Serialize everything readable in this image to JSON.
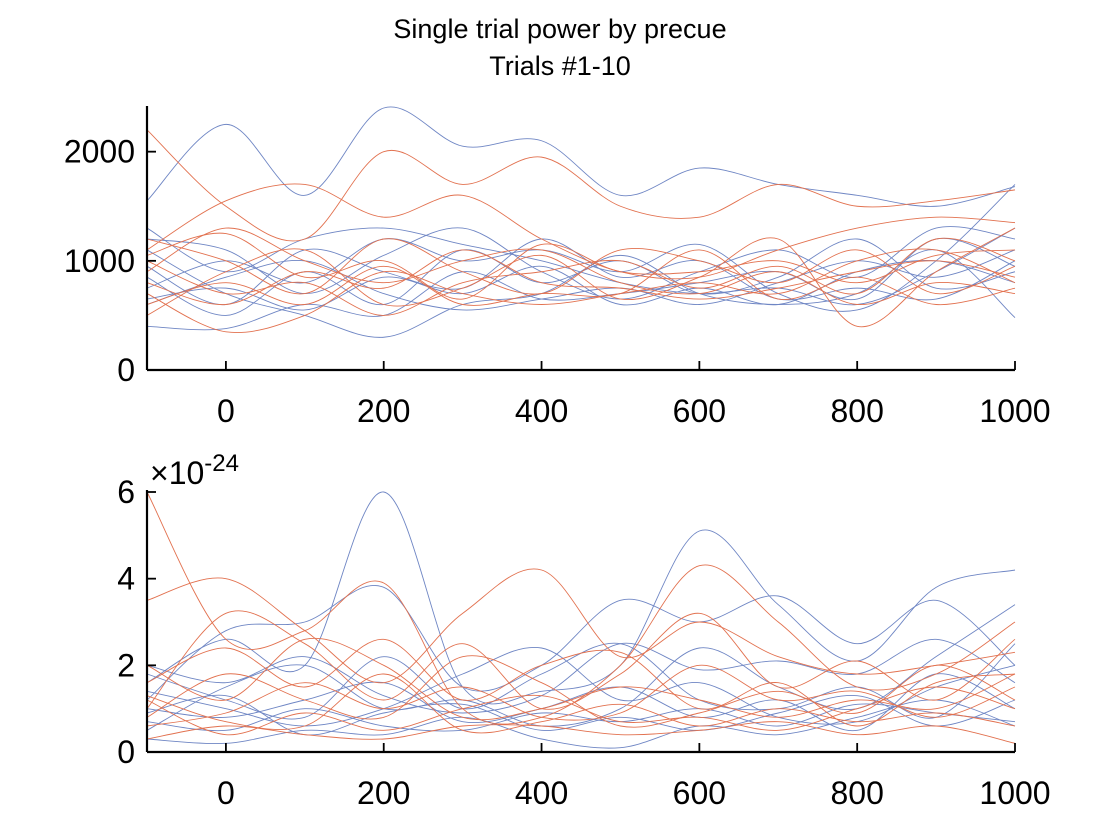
{
  "figure": {
    "title_line1": "Single trial power by precue",
    "title_line2": "Trials #1-10"
  },
  "colors": {
    "blue": "#6f86c4",
    "red": "#e2714f",
    "axis": "#000000"
  },
  "chart_data": [
    {
      "type": "line",
      "xlim": [
        -100,
        1000
      ],
      "ylim": [
        0,
        2400
      ],
      "xticks": [
        0,
        200,
        400,
        600,
        800,
        1000
      ],
      "yticks": [
        0,
        1000,
        2000
      ],
      "xtick_labels": [
        "0",
        "200",
        "400",
        "600",
        "800",
        "1000"
      ],
      "ytick_labels": [
        "0",
        "1000",
        "2000"
      ],
      "x": [
        -100,
        0,
        100,
        200,
        300,
        400,
        500,
        600,
        700,
        800,
        900,
        1000
      ],
      "series": [
        {
          "color": "blue",
          "values": [
            1550,
            2250,
            1600,
            2400,
            2050,
            2100,
            1600,
            1850,
            1700,
            1600,
            1500,
            1680
          ]
        },
        {
          "color": "blue",
          "values": [
            1300,
            900,
            1200,
            1300,
            1150,
            1000,
            800,
            700,
            750,
            600,
            900,
            1300
          ]
        },
        {
          "color": "blue",
          "values": [
            1100,
            700,
            500,
            300,
            600,
            700,
            1050,
            700,
            600,
            700,
            1100,
            480
          ]
        },
        {
          "color": "blue",
          "values": [
            750,
            1000,
            800,
            1200,
            1000,
            1100,
            900,
            1150,
            700,
            550,
            1000,
            1700
          ]
        },
        {
          "color": "blue",
          "values": [
            600,
            850,
            1000,
            700,
            550,
            650,
            750,
            600,
            800,
            1000,
            850,
            1100
          ]
        },
        {
          "color": "blue",
          "values": [
            400,
            380,
            600,
            500,
            900,
            650,
            700,
            800,
            900,
            650,
            1200,
            950
          ]
        },
        {
          "color": "blue",
          "values": [
            950,
            600,
            1100,
            900,
            750,
            1200,
            850,
            1000,
            650,
            750,
            650,
            1000
          ]
        },
        {
          "color": "blue",
          "values": [
            1200,
            1100,
            700,
            1050,
            1300,
            900,
            650,
            900,
            1100,
            850,
            1300,
            1200
          ]
        },
        {
          "color": "blue",
          "values": [
            850,
            500,
            900,
            600,
            1100,
            800,
            1000,
            700,
            850,
            1200,
            750,
            900
          ]
        },
        {
          "color": "blue",
          "values": [
            650,
            750,
            550,
            850,
            700,
            950,
            600,
            750,
            600,
            900,
            1000,
            800
          ]
        },
        {
          "color": "red",
          "values": [
            2200,
            1500,
            1200,
            2000,
            1700,
            1950,
            1500,
            1400,
            1700,
            1500,
            1550,
            1650
          ]
        },
        {
          "color": "red",
          "values": [
            1100,
            1550,
            1700,
            1400,
            1600,
            1200,
            900,
            850,
            1100,
            1300,
            1400,
            1350
          ]
        },
        {
          "color": "red",
          "values": [
            900,
            1300,
            1000,
            800,
            1000,
            1100,
            800,
            700,
            900,
            600,
            800,
            700
          ]
        },
        {
          "color": "red",
          "values": [
            700,
            350,
            500,
            900,
            700,
            600,
            700,
            800,
            700,
            1000,
            1100,
            800
          ]
        },
        {
          "color": "red",
          "values": [
            1000,
            700,
            800,
            500,
            800,
            900,
            1000,
            750,
            950,
            700,
            1200,
            1000
          ]
        },
        {
          "color": "red",
          "values": [
            500,
            900,
            1100,
            600,
            750,
            1050,
            650,
            850,
            1200,
            400,
            900,
            1300
          ]
        },
        {
          "color": "red",
          "values": [
            1200,
            1000,
            700,
            1200,
            900,
            700,
            1100,
            1000,
            800,
            1100,
            700,
            950
          ]
        },
        {
          "color": "red",
          "values": [
            800,
            600,
            900,
            750,
            1100,
            800,
            750,
            650,
            750,
            900,
            1000,
            850
          ]
        },
        {
          "color": "red",
          "values": [
            1050,
            1250,
            850,
            1000,
            650,
            1150,
            900,
            900,
            1000,
            800,
            1050,
            1100
          ]
        },
        {
          "color": "red",
          "values": [
            600,
            800,
            600,
            950,
            600,
            700,
            700,
            1100,
            650,
            850,
            600,
            750
          ]
        }
      ]
    },
    {
      "type": "line",
      "xlim": [
        -100,
        1000
      ],
      "ylim": [
        0,
        6
      ],
      "xticks": [
        0,
        200,
        400,
        600,
        800,
        1000
      ],
      "yticks": [
        0,
        2,
        4,
        6
      ],
      "xtick_labels": [
        "0",
        "200",
        "400",
        "600",
        "800",
        "1000"
      ],
      "ytick_labels": [
        "0",
        "2",
        "4",
        "6"
      ],
      "y_exponent_prefix": "×10",
      "y_exponent_power": "-24",
      "x": [
        -100,
        0,
        100,
        200,
        300,
        400,
        500,
        600,
        700,
        800,
        900,
        1000
      ],
      "series": [
        {
          "color": "blue",
          "values": [
            1.6,
            2.6,
            2.0,
            6.0,
            1.5,
            1.4,
            2.0,
            5.1,
            3.4,
            2.1,
            3.8,
            4.2
          ]
        },
        {
          "color": "blue",
          "values": [
            1.2,
            2.8,
            3.0,
            3.8,
            1.5,
            2.0,
            3.5,
            3.0,
            3.6,
            2.5,
            3.5,
            2.0
          ]
        },
        {
          "color": "blue",
          "values": [
            0.5,
            1.5,
            2.0,
            1.0,
            1.2,
            0.6,
            1.0,
            2.4,
            1.5,
            1.0,
            2.2,
            3.4
          ]
        },
        {
          "color": "blue",
          "values": [
            1.8,
            1.2,
            0.8,
            2.2,
            1.0,
            1.8,
            2.5,
            1.2,
            1.0,
            1.5,
            0.8,
            2.5
          ]
        },
        {
          "color": "blue",
          "values": [
            0.3,
            0.2,
            0.5,
            0.4,
            0.8,
            0.3,
            0.1,
            0.6,
            0.4,
            0.8,
            1.2,
            0.6
          ]
        },
        {
          "color": "blue",
          "values": [
            1.0,
            0.8,
            1.2,
            1.6,
            0.7,
            1.0,
            1.5,
            0.8,
            1.2,
            0.5,
            1.8,
            1.0
          ]
        },
        {
          "color": "blue",
          "values": [
            1.4,
            1.0,
            0.6,
            1.0,
            1.8,
            2.4,
            1.2,
            1.6,
            0.8,
            0.7,
            1.5,
            2.0
          ]
        },
        {
          "color": "blue",
          "values": [
            0.7,
            0.5,
            1.0,
            0.6,
            0.5,
            0.9,
            0.7,
            1.0,
            0.6,
            1.1,
            0.9,
            0.7
          ]
        },
        {
          "color": "blue",
          "values": [
            2.0,
            1.6,
            2.2,
            1.3,
            0.9,
            1.3,
            2.5,
            1.9,
            2.1,
            1.8,
            2.6,
            1.6
          ]
        },
        {
          "color": "blue",
          "values": [
            0.9,
            1.3,
            0.4,
            0.9,
            1.1,
            0.5,
            0.8,
            0.5,
            0.9,
            1.3,
            0.6,
            1.2
          ]
        },
        {
          "color": "red",
          "values": [
            6.0,
            2.6,
            2.8,
            3.9,
            1.0,
            0.8,
            2.0,
            4.3,
            3.0,
            1.5,
            1.8,
            3.0
          ]
        },
        {
          "color": "red",
          "values": [
            3.5,
            4.0,
            2.8,
            1.6,
            3.2,
            4.2,
            2.2,
            3.0,
            2.2,
            1.8,
            2.0,
            2.3
          ]
        },
        {
          "color": "red",
          "values": [
            1.0,
            3.2,
            2.5,
            1.2,
            2.5,
            1.0,
            1.8,
            3.2,
            1.5,
            2.1,
            1.2,
            2.6
          ]
        },
        {
          "color": "red",
          "values": [
            1.6,
            2.4,
            1.5,
            2.6,
            1.2,
            2.0,
            2.3,
            1.0,
            1.6,
            0.6,
            1.6,
            1.8
          ]
        },
        {
          "color": "red",
          "values": [
            0.6,
            0.9,
            1.6,
            1.0,
            1.5,
            0.8,
            0.9,
            2.0,
            1.2,
            1.4,
            0.8,
            1.5
          ]
        },
        {
          "color": "red",
          "values": [
            0.3,
            0.6,
            0.4,
            0.3,
            0.6,
            0.6,
            0.4,
            0.5,
            0.7,
            0.4,
            0.6,
            0.2
          ]
        },
        {
          "color": "red",
          "values": [
            1.2,
            0.4,
            0.9,
            0.5,
            1.0,
            1.3,
            0.7,
            0.8,
            0.5,
            1.0,
            1.5,
            1.0
          ]
        },
        {
          "color": "red",
          "values": [
            2.0,
            1.2,
            2.6,
            2.0,
            0.8,
            1.0,
            1.5,
            1.2,
            0.8,
            1.2,
            1.0,
            1.8
          ]
        },
        {
          "color": "red",
          "values": [
            0.8,
            1.8,
            1.2,
            0.8,
            2.2,
            1.6,
            0.6,
            0.9,
            1.4,
            0.9,
            2.0,
            1.2
          ]
        },
        {
          "color": "red",
          "values": [
            1.3,
            0.7,
            0.6,
            1.8,
            0.5,
            0.7,
            1.1,
            0.6,
            1.0,
            0.7,
            0.9,
            0.6
          ]
        }
      ]
    }
  ]
}
